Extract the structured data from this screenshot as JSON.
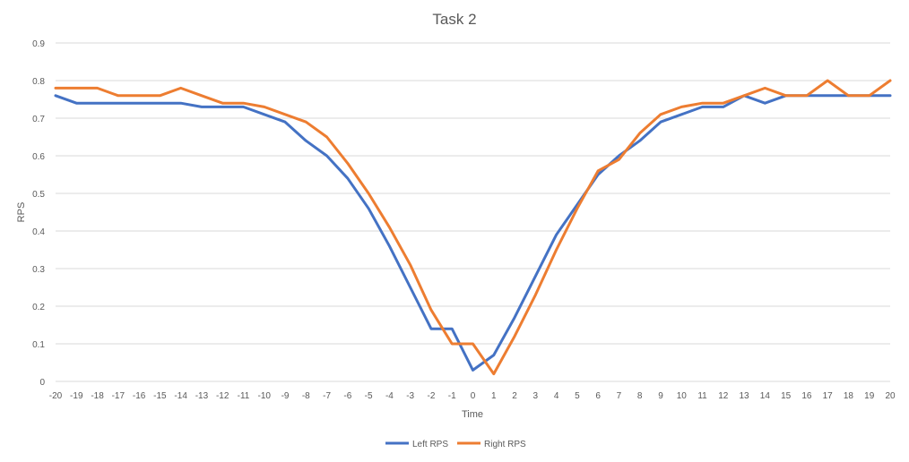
{
  "chart_data": {
    "type": "line",
    "title": "Task 2",
    "xlabel": "Time",
    "ylabel": "RPS",
    "x": [
      -20,
      -19,
      -18,
      -17,
      -16,
      -15,
      -14,
      -13,
      -12,
      -11,
      -10,
      -9,
      -8,
      -7,
      -6,
      -5,
      -4,
      -3,
      -2,
      -1,
      0,
      1,
      2,
      3,
      4,
      5,
      6,
      7,
      8,
      9,
      10,
      11,
      12,
      13,
      14,
      15,
      16,
      17,
      18,
      19,
      20
    ],
    "xlim": [
      -20,
      20
    ],
    "ylim": [
      0,
      0.9
    ],
    "yticks": [
      0,
      0.1,
      0.2,
      0.3,
      0.4,
      0.5,
      0.6,
      0.7,
      0.8,
      0.9
    ],
    "grid": true,
    "legend_position": "bottom",
    "series": [
      {
        "name": "Left RPS",
        "color": "#4472C4",
        "values": [
          0.76,
          0.74,
          0.74,
          0.74,
          0.74,
          0.74,
          0.74,
          0.73,
          0.73,
          0.73,
          0.71,
          0.69,
          0.64,
          0.6,
          0.54,
          0.46,
          0.36,
          0.25,
          0.14,
          0.14,
          0.03,
          0.07,
          0.17,
          0.28,
          0.39,
          0.47,
          0.55,
          0.6,
          0.64,
          0.69,
          0.71,
          0.73,
          0.73,
          0.76,
          0.74,
          0.76,
          0.76,
          0.76,
          0.76,
          0.76,
          0.76
        ]
      },
      {
        "name": "Right RPS",
        "color": "#ED7D31",
        "values": [
          0.78,
          0.78,
          0.78,
          0.76,
          0.76,
          0.76,
          0.78,
          0.76,
          0.74,
          0.74,
          0.73,
          0.71,
          0.69,
          0.65,
          0.58,
          0.5,
          0.41,
          0.31,
          0.19,
          0.1,
          0.1,
          0.02,
          0.12,
          0.23,
          0.35,
          0.46,
          0.56,
          0.59,
          0.66,
          0.71,
          0.73,
          0.74,
          0.74,
          0.76,
          0.78,
          0.76,
          0.76,
          0.8,
          0.76,
          0.76,
          0.8
        ]
      }
    ]
  }
}
